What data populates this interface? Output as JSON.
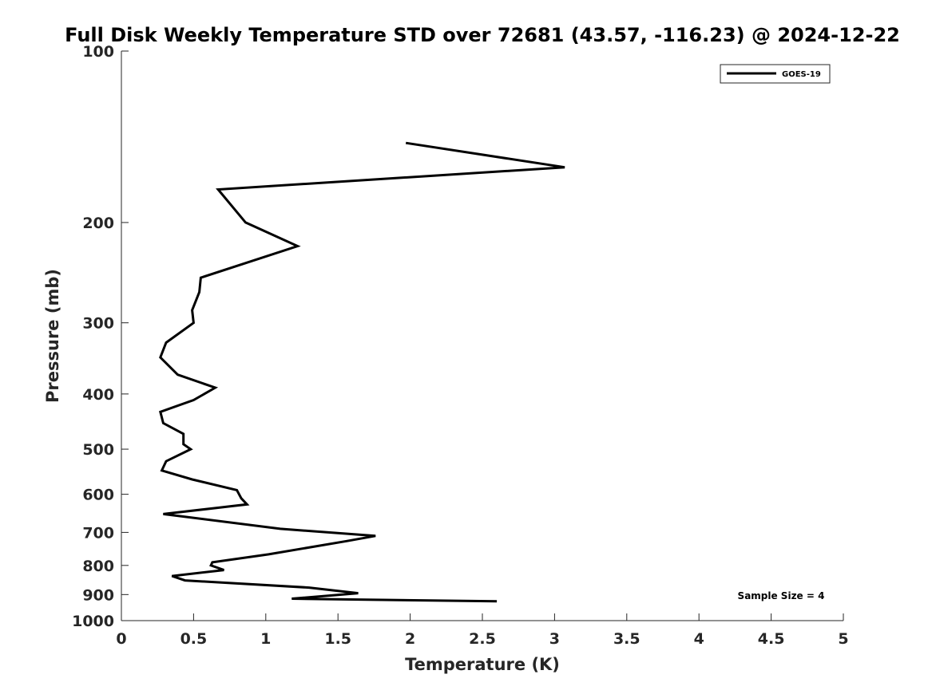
{
  "chart_data": {
    "type": "line",
    "title": "Full Disk Weekly Temperature STD over 72681 (43.57, -116.23) @ 2024-12-22",
    "xlabel": "Temperature (K)",
    "ylabel": "Pressure (mb)",
    "xlim": [
      0,
      5
    ],
    "ylim": [
      100,
      1000
    ],
    "y_scale": "log",
    "y_reversed": true,
    "x_ticks": [
      0,
      0.5,
      1,
      1.5,
      2,
      2.5,
      3,
      3.5,
      4,
      4.5,
      5
    ],
    "x_tick_labels": [
      "0",
      "0.5",
      "1",
      "1.5",
      "2",
      "2.5",
      "3",
      "3.5",
      "4",
      "4.5",
      "5"
    ],
    "y_ticks": [
      100,
      200,
      300,
      400,
      500,
      600,
      700,
      800,
      900,
      1000
    ],
    "y_tick_labels": [
      "100",
      "200",
      "300",
      "400",
      "500",
      "600",
      "700",
      "800",
      "900",
      "1000"
    ],
    "grid": false,
    "legend_position": "top-right",
    "series": [
      {
        "name": "GOES-19",
        "color": "#000000",
        "x": [
          1.97,
          3.07,
          0.67,
          0.86,
          1.22,
          0.55,
          0.54,
          0.49,
          0.5,
          0.31,
          0.27,
          0.39,
          0.65,
          0.5,
          0.27,
          0.29,
          0.43,
          0.43,
          0.48,
          0.31,
          0.28,
          0.49,
          0.8,
          0.83,
          0.87,
          0.29,
          1.1,
          1.76,
          1.56,
          1.02,
          0.63,
          0.62,
          0.71,
          0.35,
          0.44,
          1.3,
          1.64,
          1.18,
          2.6
        ],
        "y": [
          145,
          160,
          175,
          200,
          220,
          250,
          265,
          285,
          300,
          325,
          345,
          370,
          390,
          410,
          430,
          450,
          470,
          490,
          500,
          525,
          545,
          565,
          590,
          610,
          625,
          650,
          690,
          710,
          725,
          765,
          790,
          800,
          815,
          835,
          850,
          875,
          895,
          915,
          925
        ]
      }
    ],
    "annotations": [
      {
        "text": "Sample Size = 4",
        "position": "bottom-right"
      }
    ]
  }
}
